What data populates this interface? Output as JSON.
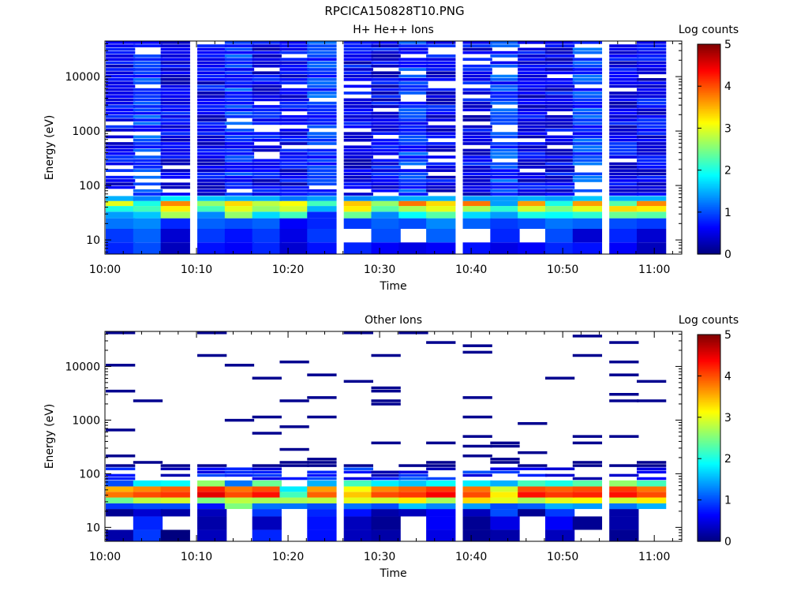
{
  "figure_title": "RPCICA150828T10.PNG",
  "colormap_stops": [
    "#00007f",
    "#0000ff",
    "#007fff",
    "#00ffff",
    "#7fff7f",
    "#ffff00",
    "#ff7f00",
    "#ff0000",
    "#7f0000"
  ],
  "chart_data": [
    {
      "type": "heatmap",
      "title": "H+ He++ Ions",
      "xlabel": "Time",
      "ylabel": "Energy (eV)",
      "colorbar_label": "Log counts",
      "colorbar_range": [
        0,
        5
      ],
      "colorbar_ticks": [
        "0",
        "1",
        "2",
        "3",
        "4",
        "5"
      ],
      "x_range": [
        "10:00",
        "11:03"
      ],
      "x_ticks": [
        "10:00",
        "10:10",
        "10:20",
        "10:30",
        "10:40",
        "10:50",
        "11:00"
      ],
      "y_scale": "log",
      "y_range": [
        5.5,
        45000
      ],
      "y_ticks": [
        "10",
        "100",
        "1000",
        "10000"
      ],
      "time_bins": [
        "10:00",
        "10:03",
        "10:06",
        "10:10",
        "10:13",
        "10:16",
        "10:19",
        "10:22",
        "10:26",
        "10:29",
        "10:32",
        "10:35",
        "10:39",
        "10:42",
        "10:45",
        "10:48",
        "10:51",
        "10:55",
        "10:58"
      ],
      "energy_bands": [
        {
          "e_low": 5.5,
          "e_high": 9,
          "values": [
            0.8,
            1.0,
            0.3,
            0.7,
            0.6,
            0.8,
            0.4,
            0.7,
            0.8,
            0.6,
            0.5,
            0.6,
            0.7,
            0.5,
            0.6,
            0.8,
            0.7,
            0.6,
            0.3
          ]
        },
        {
          "e_low": 9,
          "e_high": 16,
          "values": [
            0.9,
            1.1,
            0.4,
            0.9,
            0.7,
            0.9,
            0.5,
            0.9,
            null,
            1.0,
            null,
            1.1,
            null,
            0.8,
            null,
            1.0,
            0.4,
            0.8,
            0.4
          ]
        },
        {
          "e_low": 16,
          "e_high": 25,
          "values": [
            1.2,
            1.3,
            0.8,
            1.1,
            1.0,
            1.1,
            0.6,
            0.8,
            0.9,
            1.1,
            1.0,
            1.3,
            1.1,
            0.9,
            1.0,
            1.2,
            1.1,
            1.0,
            0.9
          ]
        },
        {
          "e_low": 25,
          "e_high": 33,
          "values": [
            1.4,
            1.6,
            2.7,
            1.3,
            2.6,
            1.7,
            2.2,
            0.8,
            2.4,
            1.3,
            1.9,
            2.3,
            1.7,
            1.4,
            2.0,
            1.9,
            2.1,
            2.4,
            2.3
          ]
        },
        {
          "e_low": 33,
          "e_high": 42,
          "values": [
            2.0,
            2.2,
            3.2,
            2.2,
            3.0,
            2.6,
            2.9,
            1.5,
            3.2,
            2.3,
            2.7,
            3.0,
            2.7,
            2.1,
            2.9,
            2.5,
            3.0,
            3.3,
            3.2
          ]
        },
        {
          "e_low": 42,
          "e_high": 52,
          "values": [
            3.0,
            2.0,
            3.7,
            2.6,
            3.3,
            2.8,
            3.1,
            2.2,
            3.4,
            2.6,
            3.8,
            3.3,
            3.8,
            1.4,
            3.6,
            2.0,
            3.6,
            2.3,
            3.7
          ]
        },
        {
          "e_low": 52,
          "e_high": 64,
          "values": [
            1.5,
            1.3,
            1.8,
            1.6,
            1.5,
            1.5,
            1.2,
            1.4,
            1.3,
            1.4,
            1.5,
            1.5,
            1.4,
            1.4,
            1.5,
            1.4,
            1.6,
            1.5,
            1.5
          ]
        },
        {
          "e_low": 64,
          "e_high": 45000,
          "values": "sparse"
        }
      ]
    },
    {
      "type": "heatmap",
      "title": "Other Ions",
      "xlabel": "Time",
      "ylabel": "Energy (eV)",
      "colorbar_label": "Log counts",
      "colorbar_range": [
        0,
        5
      ],
      "colorbar_ticks": [
        "0",
        "1",
        "2",
        "3",
        "4",
        "5"
      ],
      "x_range": [
        "10:00",
        "11:03"
      ],
      "x_ticks": [
        "10:00",
        "10:10",
        "10:20",
        "10:30",
        "10:40",
        "10:50",
        "11:00"
      ],
      "y_scale": "log",
      "y_range": [
        5.5,
        45000
      ],
      "y_ticks": [
        "10",
        "100",
        "1000",
        "10000"
      ],
      "time_bins": [
        "10:00",
        "10:03",
        "10:06",
        "10:10",
        "10:13",
        "10:16",
        "10:19",
        "10:22",
        "10:26",
        "10:29",
        "10:32",
        "10:35",
        "10:39",
        "10:42",
        "10:45",
        "10:48",
        "10:51",
        "10:55",
        "10:58"
      ],
      "energy_bands": [
        {
          "e_low": 5.5,
          "e_high": 9,
          "values": [
            0.2,
            0.9,
            0.0,
            0.3,
            null,
            0.8,
            null,
            0.7,
            0.3,
            0.2,
            null,
            0.5,
            0.1,
            0.2,
            null,
            0.3,
            null,
            0.1,
            null
          ]
        },
        {
          "e_low": 9,
          "e_high": 16,
          "values": [
            null,
            0.8,
            null,
            0.2,
            null,
            0.3,
            null,
            0.7,
            0.3,
            0.1,
            null,
            0.6,
            0.1,
            0.5,
            null,
            0.6,
            0.1,
            0.2,
            null
          ]
        },
        {
          "e_low": 16,
          "e_high": 22,
          "values": [
            0.1,
            0.4,
            0.2,
            0.3,
            null,
            0.9,
            null,
            0.8,
            0.7,
            0.2,
            0.3,
            0.6,
            0.3,
            1.0,
            0.1,
            0.9,
            null,
            0.2,
            null
          ]
        },
        {
          "e_low": 22,
          "e_high": 28,
          "values": [
            0.9,
            1.0,
            1.0,
            0.7,
            2.5,
            1.2,
            1.2,
            1.0,
            1.2,
            1.0,
            1.6,
            1.3,
            1.4,
            1.0,
            1.1,
            1.5,
            1.4,
            1.2,
            1.5
          ]
        },
        {
          "e_low": 28,
          "e_high": 36,
          "values": [
            2.4,
            2.8,
            2.9,
            2.5,
            2.8,
            2.7,
            2.7,
            2.8,
            3.0,
            2.9,
            3.2,
            2.7,
            3.3,
            3.0,
            2.7,
            3.0,
            3.1,
            2.9,
            3.2
          ]
        },
        {
          "e_low": 36,
          "e_high": 46,
          "values": [
            3.8,
            4.0,
            4.1,
            4.5,
            4.0,
            4.3,
            2.2,
            3.9,
            3.4,
            4.0,
            4.1,
            4.4,
            4.0,
            3.2,
            4.3,
            4.1,
            4.2,
            4.3,
            4.0
          ]
        },
        {
          "e_low": 46,
          "e_high": 58,
          "values": [
            3.5,
            3.7,
            3.9,
            4.2,
            3.8,
            4.0,
            1.8,
            3.6,
            3.1,
            3.7,
            3.9,
            4.1,
            3.8,
            2.9,
            4.0,
            3.9,
            4.0,
            4.1,
            3.8
          ]
        },
        {
          "e_low": 58,
          "e_high": 75,
          "values": [
            1.0,
            1.8,
            1.9,
            2.6,
            1.2,
            2.4,
            null,
            1.5,
            2.2,
            1.8,
            1.6,
            1.9,
            1.8,
            1.5,
            2.2,
            2.0,
            2.3,
            2.6,
            2.2
          ]
        },
        {
          "e_low": 75,
          "e_high": 45000,
          "values": "sparse"
        }
      ]
    }
  ]
}
